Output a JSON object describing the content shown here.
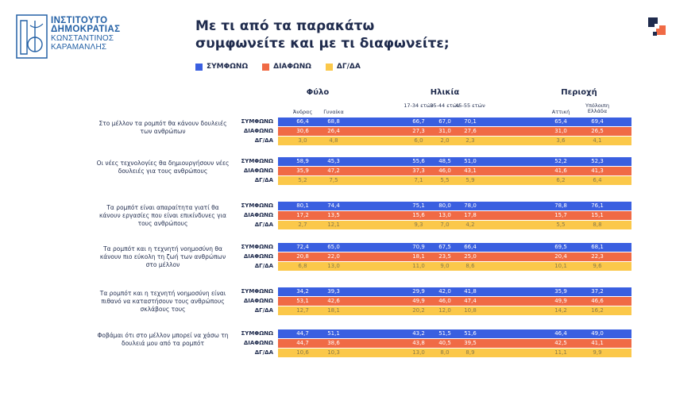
{
  "logo": {
    "line1": "ΙΝΣΤΙΤΟΥΤΟ",
    "line2": "ΔΗΜΟΚΡΑΤΙΑΣ",
    "line3": "ΚΩΝΣΤΑΝΤΙΝΟΣ",
    "line4": "ΚΑΡΑΜΑΝΛΗΣ"
  },
  "title": {
    "line1": "Με τι από τα παρακάτω",
    "line2": "συμφωνείτε και με τι διαφωνείτε;"
  },
  "colors": {
    "agree": "#3a5fe0",
    "disagree": "#f06a45",
    "dk": "#fbc84a",
    "text": "#1f2b4d",
    "logo": "#2360a5",
    "icon_dark": "#1f2b4d",
    "icon_accent": "#f06a45"
  },
  "legend": [
    "ΣΥΜΦΩΝΩ",
    "ΔΙΑΦΩΝΩ",
    "ΔΓ/ΔΑ"
  ],
  "chart_data": {
    "type": "table",
    "title": "Με τι από τα παρακάτω συμφωνείτε και με τι διαφωνείτε;",
    "groups": [
      {
        "label": "Φύλο",
        "columns": [
          "Άνδρας",
          "Γυναίκα"
        ]
      },
      {
        "label": "Ηλικία",
        "columns": [
          "17-34 ετών",
          "35-44 ετών",
          "45-55 ετών"
        ]
      },
      {
        "label": "Περιοχή",
        "columns": [
          "Αττική",
          "Υπόλοιπη Ελλάδα"
        ]
      }
    ],
    "series_labels": [
      "ΣΥΜΦΩΝΩ",
      "ΔΙΑΦΩΝΩ",
      "ΔΓ/ΔΑ"
    ],
    "questions": [
      {
        "text": "Στο μέλλον τα ρομπότ θα κάνουν δουλειές των ανθρώπων",
        "rows": [
          [
            "66,4",
            "68,8",
            "66,7",
            "67,0",
            "70,1",
            "65,4",
            "69,4"
          ],
          [
            "30,6",
            "26,4",
            "27,3",
            "31,0",
            "27,6",
            "31,0",
            "26,5"
          ],
          [
            "3,0",
            "4,8",
            "6,0",
            "2,0",
            "2,3",
            "3,6",
            "4,1"
          ]
        ]
      },
      {
        "text": "Οι νέες τεχνολογίες θα δημιουργήσουν νέες δουλειές για τους ανθρώπους",
        "rows": [
          [
            "58,9",
            "45,3",
            "55,6",
            "48,5",
            "51,0",
            "52,2",
            "52,3"
          ],
          [
            "35,9",
            "47,2",
            "37,3",
            "46,0",
            "43,1",
            "41,6",
            "41,3"
          ],
          [
            "5,2",
            "7,5",
            "7,1",
            "5,5",
            "5,9",
            "6,2",
            "6,4"
          ]
        ]
      },
      {
        "text": "Τα ρομπότ είναι απαραίτητα γιατί θα κάνουν εργασίες που είναι επικίνδυνες για τους ανθρώπους",
        "rows": [
          [
            "80,1",
            "74,4",
            "75,1",
            "80,0",
            "78,0",
            "78,8",
            "76,1"
          ],
          [
            "17,2",
            "13,5",
            "15,6",
            "13,0",
            "17,8",
            "15,7",
            "15,1"
          ],
          [
            "2,7",
            "12,1",
            "9,3",
            "7,0",
            "4,2",
            "5,5",
            "8,8"
          ]
        ]
      },
      {
        "text": "Τα ρομπότ και η τεχνητή νοημοσύνη θα κάνουν πιο εύκολη τη ζωή των ανθρώπων στο μέλλον",
        "rows": [
          [
            "72,4",
            "65,0",
            "70,9",
            "67,5",
            "66,4",
            "69,5",
            "68,1"
          ],
          [
            "20,8",
            "22,0",
            "18,1",
            "23,5",
            "25,0",
            "20,4",
            "22,3"
          ],
          [
            "6,8",
            "13,0",
            "11,0",
            "9,0",
            "8,6",
            "10,1",
            "9,6"
          ]
        ]
      },
      {
        "text": "Τα ρομπότ και η τεχνητή νοημοσύνη είναι πιθανό να καταστήσουν τους ανθρώπους σκλάβους τους",
        "rows": [
          [
            "34,2",
            "39,3",
            "29,9",
            "42,0",
            "41,8",
            "35,9",
            "37,2"
          ],
          [
            "53,1",
            "42,6",
            "49,9",
            "46,0",
            "47,4",
            "49,9",
            "46,6"
          ],
          [
            "12,7",
            "18,1",
            "20,2",
            "12,0",
            "10,8",
            "14,2",
            "16,2"
          ]
        ]
      },
      {
        "text": "Φοβάμαι ότι στο μέλλον μπορεί να χάσω τη δουλειά μου από τα ρομπότ",
        "rows": [
          [
            "44,7",
            "51,1",
            "43,2",
            "51,5",
            "51,6",
            "46,4",
            "49,0"
          ],
          [
            "44,7",
            "38,6",
            "43,8",
            "40,5",
            "39,5",
            "42,5",
            "41,1"
          ],
          [
            "10,6",
            "10,3",
            "13,0",
            "8,0",
            "8,9",
            "11,1",
            "9,9"
          ]
        ]
      }
    ]
  }
}
